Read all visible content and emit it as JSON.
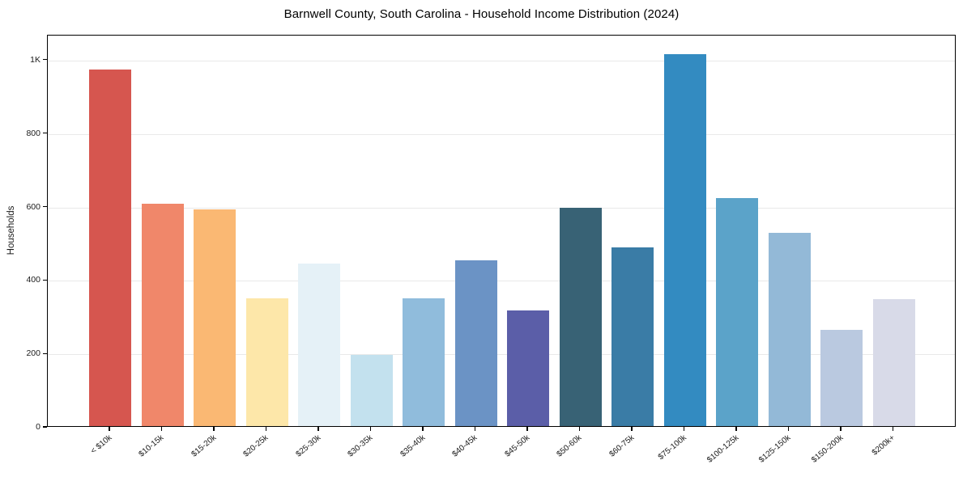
{
  "chart_data": {
    "type": "bar",
    "title": "Barnwell County, South Carolina - Household Income Distribution (2024)",
    "xlabel": "",
    "ylabel": "Households",
    "ylim": [
      0,
      1068
    ],
    "grid": "horizontal-only",
    "legend": "none",
    "background_color": "#ffffff",
    "frame_color": "#000000",
    "grid_color": "#e9e9e9",
    "text_color": "#1a1a1a",
    "yticks": [
      {
        "value": 0,
        "label": "0"
      },
      {
        "value": 200,
        "label": "200"
      },
      {
        "value": 400,
        "label": "400"
      },
      {
        "value": 600,
        "label": "600"
      },
      {
        "value": 800,
        "label": "800"
      },
      {
        "value": 1000,
        "label": "1K"
      }
    ],
    "categories": [
      "< $10k",
      "$10-15k",
      "$15-20k",
      "$20-25k",
      "$25-30k",
      "$30-35k",
      "$35-40k",
      "$40-45k",
      "$45-50k",
      "$50-60k",
      "$60-75k",
      "$75-100k",
      "$100-125k",
      "$125-150k",
      "$150-200k",
      "$200k+"
    ],
    "values": [
      972,
      605,
      590,
      347,
      442,
      194,
      347,
      452,
      314,
      595,
      486,
      1012,
      620,
      526,
      263,
      345
    ],
    "bar_colors": [
      "#d6564f",
      "#f0876a",
      "#fab873",
      "#fde7a9",
      "#e5f1f7",
      "#c3e1ee",
      "#90bcdc",
      "#6b93c5",
      "#5b5ea8",
      "#386275",
      "#3a7ca6",
      "#338bc1",
      "#5ba3c9",
      "#93b9d7",
      "#bac9e0",
      "#d8dae8"
    ]
  }
}
